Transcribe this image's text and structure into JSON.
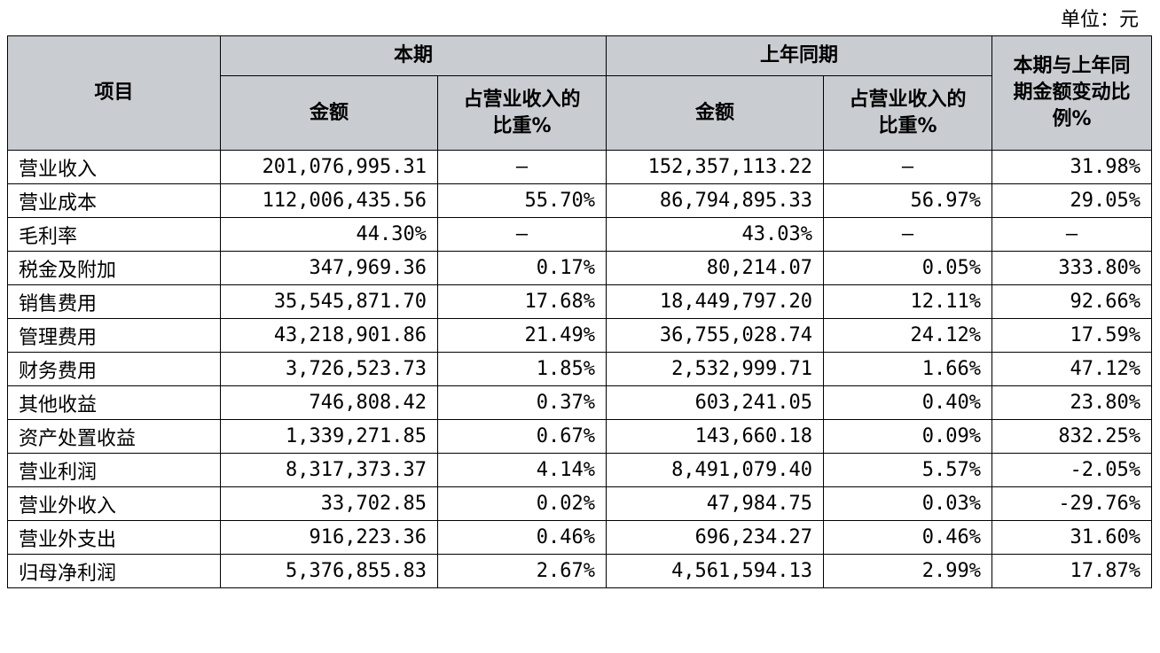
{
  "unit": "单位：元",
  "header": {
    "item": "项目",
    "current": "本期",
    "prior": "上年同期",
    "change": "本期与上年同期金额变动比例%",
    "amount": "金额",
    "ratio": "占营业收入的比重%"
  },
  "rows": [
    {
      "name": "营业收入",
      "cur": "201,076,995.31",
      "cur_pct": "–",
      "prior": "152,357,113.22",
      "prior_pct": "–",
      "change": "31.98%"
    },
    {
      "name": "营业成本",
      "cur": "112,006,435.56",
      "cur_pct": "55.70%",
      "prior": "86,794,895.33",
      "prior_pct": "56.97%",
      "change": "29.05%"
    },
    {
      "name": "毛利率",
      "cur": "44.30%",
      "cur_pct": "–",
      "prior": "43.03%",
      "prior_pct": "–",
      "change": "–"
    },
    {
      "name": "税金及附加",
      "cur": "347,969.36",
      "cur_pct": "0.17%",
      "prior": "80,214.07",
      "prior_pct": "0.05%",
      "change": "333.80%"
    },
    {
      "name": "销售费用",
      "cur": "35,545,871.70",
      "cur_pct": "17.68%",
      "prior": "18,449,797.20",
      "prior_pct": "12.11%",
      "change": "92.66%"
    },
    {
      "name": "管理费用",
      "cur": "43,218,901.86",
      "cur_pct": "21.49%",
      "prior": "36,755,028.74",
      "prior_pct": "24.12%",
      "change": "17.59%"
    },
    {
      "name": "财务费用",
      "cur": "3,726,523.73",
      "cur_pct": "1.85%",
      "prior": "2,532,999.71",
      "prior_pct": "1.66%",
      "change": "47.12%"
    },
    {
      "name": "其他收益",
      "cur": "746,808.42",
      "cur_pct": "0.37%",
      "prior": "603,241.05",
      "prior_pct": "0.40%",
      "change": "23.80%"
    },
    {
      "name": "资产处置收益",
      "cur": "1,339,271.85",
      "cur_pct": "0.67%",
      "prior": "143,660.18",
      "prior_pct": "0.09%",
      "change": "832.25%"
    },
    {
      "name": "营业利润",
      "cur": "8,317,373.37",
      "cur_pct": "4.14%",
      "prior": "8,491,079.40",
      "prior_pct": "5.57%",
      "change": "-2.05%"
    },
    {
      "name": "营业外收入",
      "cur": "33,702.85",
      "cur_pct": "0.02%",
      "prior": "47,984.75",
      "prior_pct": "0.03%",
      "change": "-29.76%"
    },
    {
      "name": "营业外支出",
      "cur": "916,223.36",
      "cur_pct": "0.46%",
      "prior": "696,234.27",
      "prior_pct": "0.46%",
      "change": "31.60%"
    },
    {
      "name": "归母净利润",
      "cur": "5,376,855.83",
      "cur_pct": "2.67%",
      "prior": "4,561,594.13",
      "prior_pct": "2.99%",
      "change": "17.87%"
    }
  ]
}
